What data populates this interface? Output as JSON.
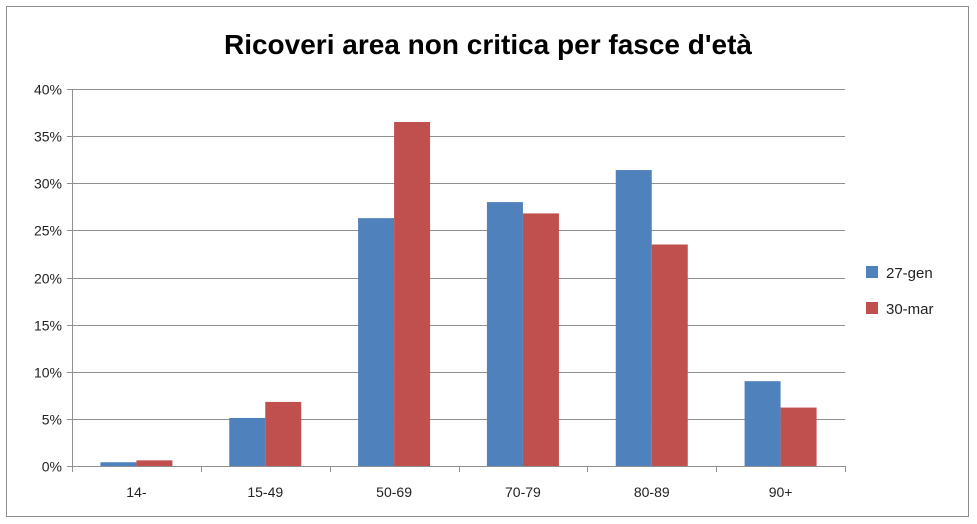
{
  "chart_data": {
    "type": "bar",
    "title": "Ricoveri area non critica per fasce d'età",
    "xlabel": "",
    "ylabel": "",
    "categories": [
      "14-",
      "15-49",
      "50-69",
      "70-79",
      "80-89",
      "90+"
    ],
    "series": [
      {
        "name": "27-gen",
        "color": "#4f81bd",
        "values": [
          0.4,
          5.1,
          26.3,
          28.0,
          31.4,
          9.0
        ]
      },
      {
        "name": "30-mar",
        "color": "#c0504d",
        "values": [
          0.6,
          6.8,
          36.5,
          26.8,
          23.5,
          6.2
        ]
      }
    ],
    "ylim": [
      0,
      40
    ],
    "yticks": [
      0,
      5,
      10,
      15,
      20,
      25,
      30,
      35,
      40
    ],
    "ytick_labels": [
      "0%",
      "5%",
      "10%",
      "15%",
      "20%",
      "25%",
      "30%",
      "35%",
      "40%"
    ],
    "grid": true,
    "legend_position": "right"
  }
}
